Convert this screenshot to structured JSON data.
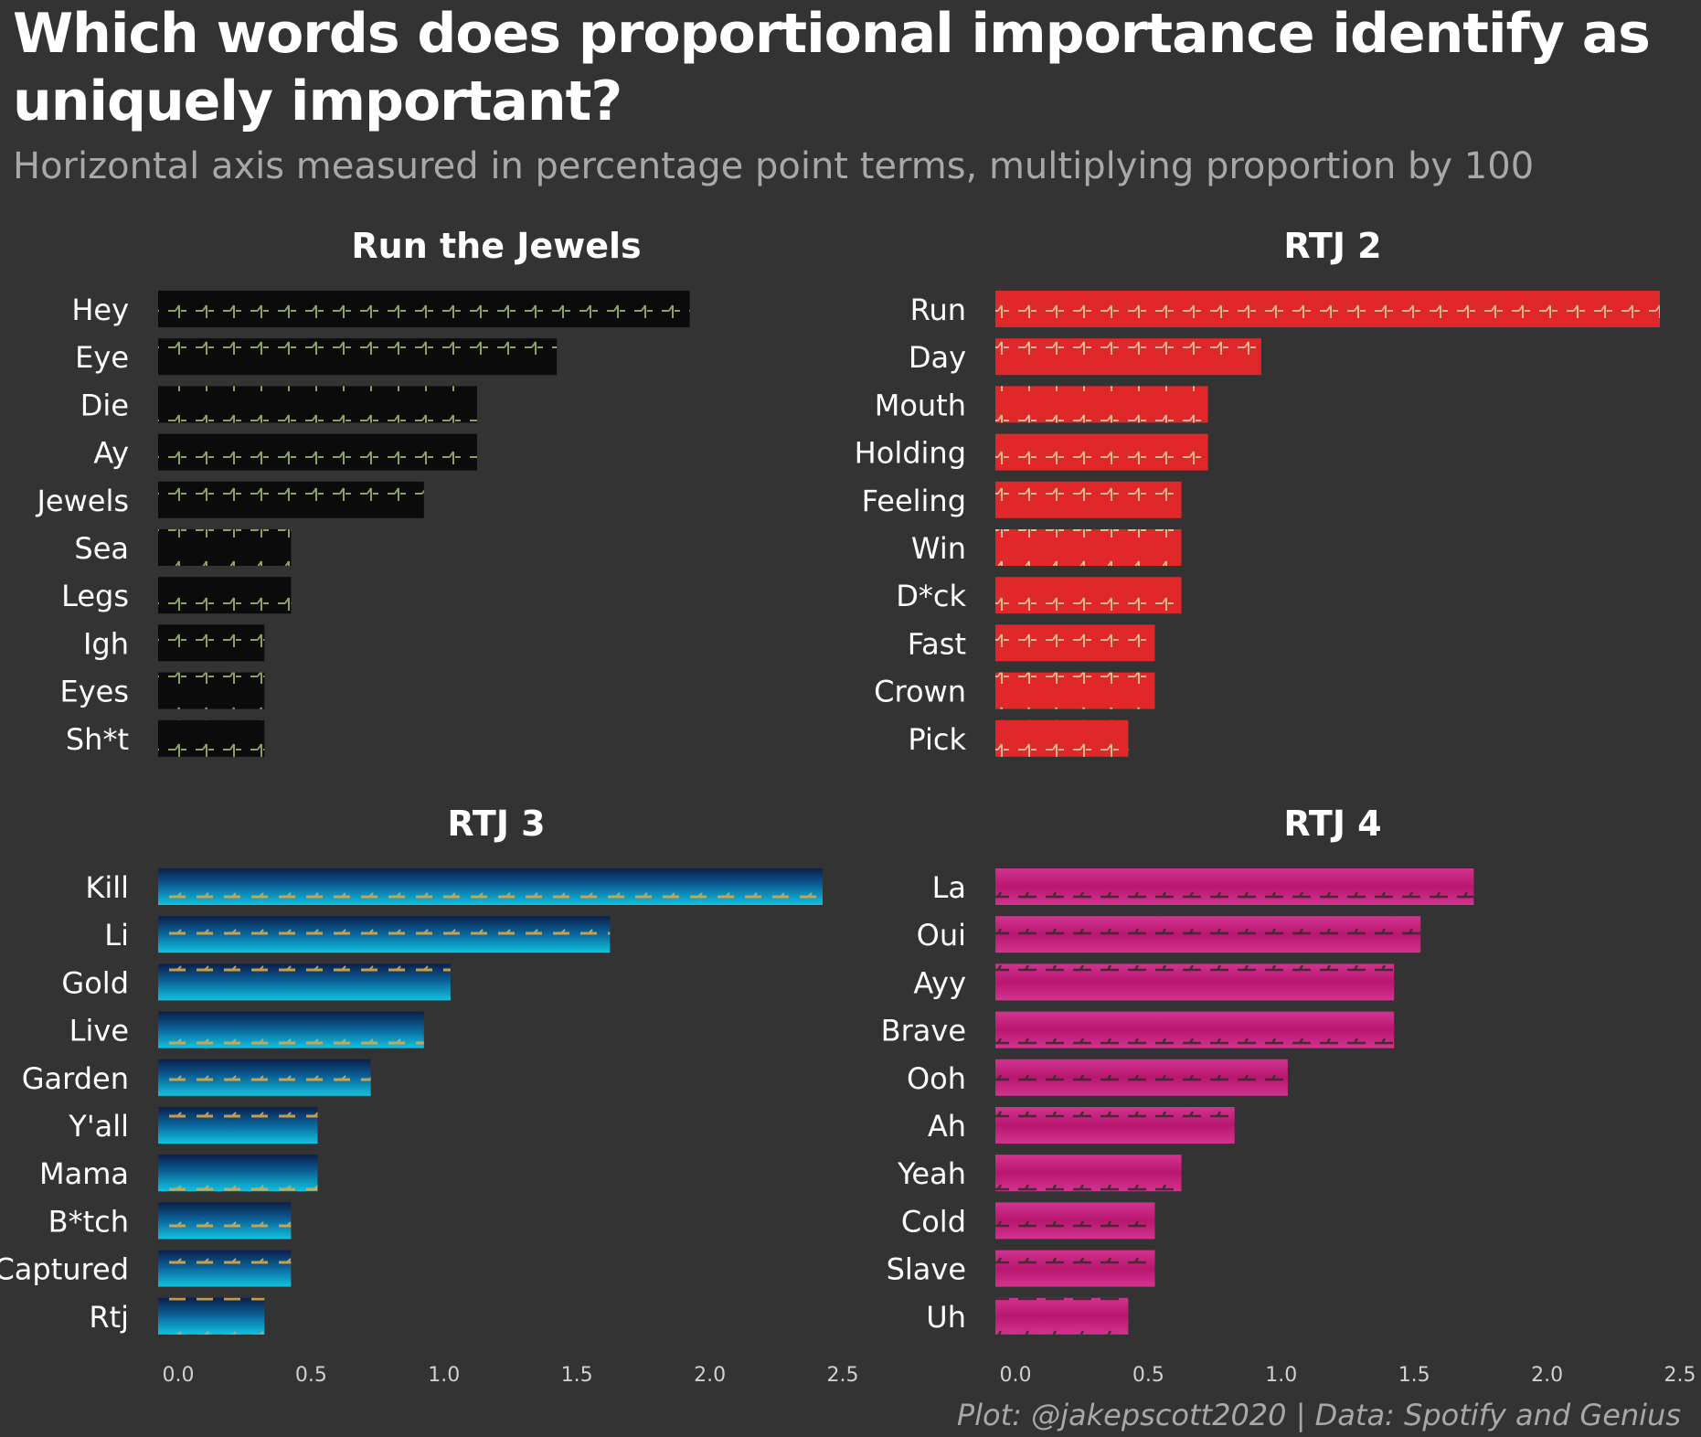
{
  "header": {
    "title": "Which words does proportional importance identify as uniquely important?",
    "subtitle": "Horizontal axis measured in percentage point terms, multiplying proportion by 100"
  },
  "footer": {
    "caption": "Plot: @jakepscott2020 | Data: Spotify and Genius"
  },
  "colors": {
    "background": "#333333",
    "text": "#ffffff",
    "muted_text": "#a8a8a8",
    "run_the_jewels_bar": "#0b0b0b",
    "rtj2_bar": "#e0282a",
    "rtj3_bar": "#0aa4cc",
    "rtj4_bar": "#c4227f"
  },
  "chart_data": [
    {
      "type": "bar",
      "orientation": "horizontal",
      "title": "Run the Jewels",
      "categories": [
        "Hey",
        "Eye",
        "Die",
        "Ay",
        "Jewels",
        "Sea",
        "Legs",
        "Igh",
        "Eyes",
        "Sh*t"
      ],
      "values": [
        2.0,
        1.5,
        1.2,
        1.2,
        1.0,
        0.5,
        0.5,
        0.4,
        0.4,
        0.4
      ],
      "xlim": [
        0,
        2.5
      ],
      "xticks": [
        "0.0",
        "0.5",
        "1.0",
        "1.5",
        "2.0",
        "2.5"
      ],
      "bar_color": "#0b0b0b",
      "bar_style": "dark"
    },
    {
      "type": "bar",
      "orientation": "horizontal",
      "title": "RTJ 2",
      "categories": [
        "Run",
        "Day",
        "Mouth",
        "Holding",
        "Feeling",
        "Win",
        "D*ck",
        "Fast",
        "Crown",
        "Pick"
      ],
      "values": [
        2.5,
        1.0,
        0.8,
        0.8,
        0.7,
        0.7,
        0.7,
        0.6,
        0.6,
        0.5
      ],
      "xlim": [
        0,
        2.5
      ],
      "xticks": [
        "0.0",
        "0.5",
        "1.0",
        "1.5",
        "2.0",
        "2.5"
      ],
      "bar_color": "#e0282a",
      "bar_style": "red"
    },
    {
      "type": "bar",
      "orientation": "horizontal",
      "title": "RTJ 3",
      "categories": [
        "Kill",
        "Li",
        "Gold",
        "Live",
        "Garden",
        "Y'all",
        "Mama",
        "B*tch",
        "Captured",
        "Rtj"
      ],
      "values": [
        2.5,
        1.7,
        1.1,
        1.0,
        0.8,
        0.6,
        0.6,
        0.5,
        0.5,
        0.4
      ],
      "xlim": [
        0,
        2.5
      ],
      "xticks": [
        "0.0",
        "0.5",
        "1.0",
        "1.5",
        "2.0",
        "2.5"
      ],
      "bar_color": "#0aa4cc",
      "bar_style": "blue"
    },
    {
      "type": "bar",
      "orientation": "horizontal",
      "title": "RTJ 4",
      "categories": [
        "La",
        "Oui",
        "Ayy",
        "Brave",
        "Ooh",
        "Ah",
        "Yeah",
        "Cold",
        "Slave",
        "Uh"
      ],
      "values": [
        1.8,
        1.6,
        1.5,
        1.5,
        1.1,
        0.9,
        0.7,
        0.6,
        0.6,
        0.5
      ],
      "xlim": [
        0,
        2.5
      ],
      "xticks": [
        "0.0",
        "0.5",
        "1.0",
        "1.5",
        "2.0",
        "2.5"
      ],
      "bar_color": "#c4227f",
      "bar_style": "pink"
    }
  ]
}
